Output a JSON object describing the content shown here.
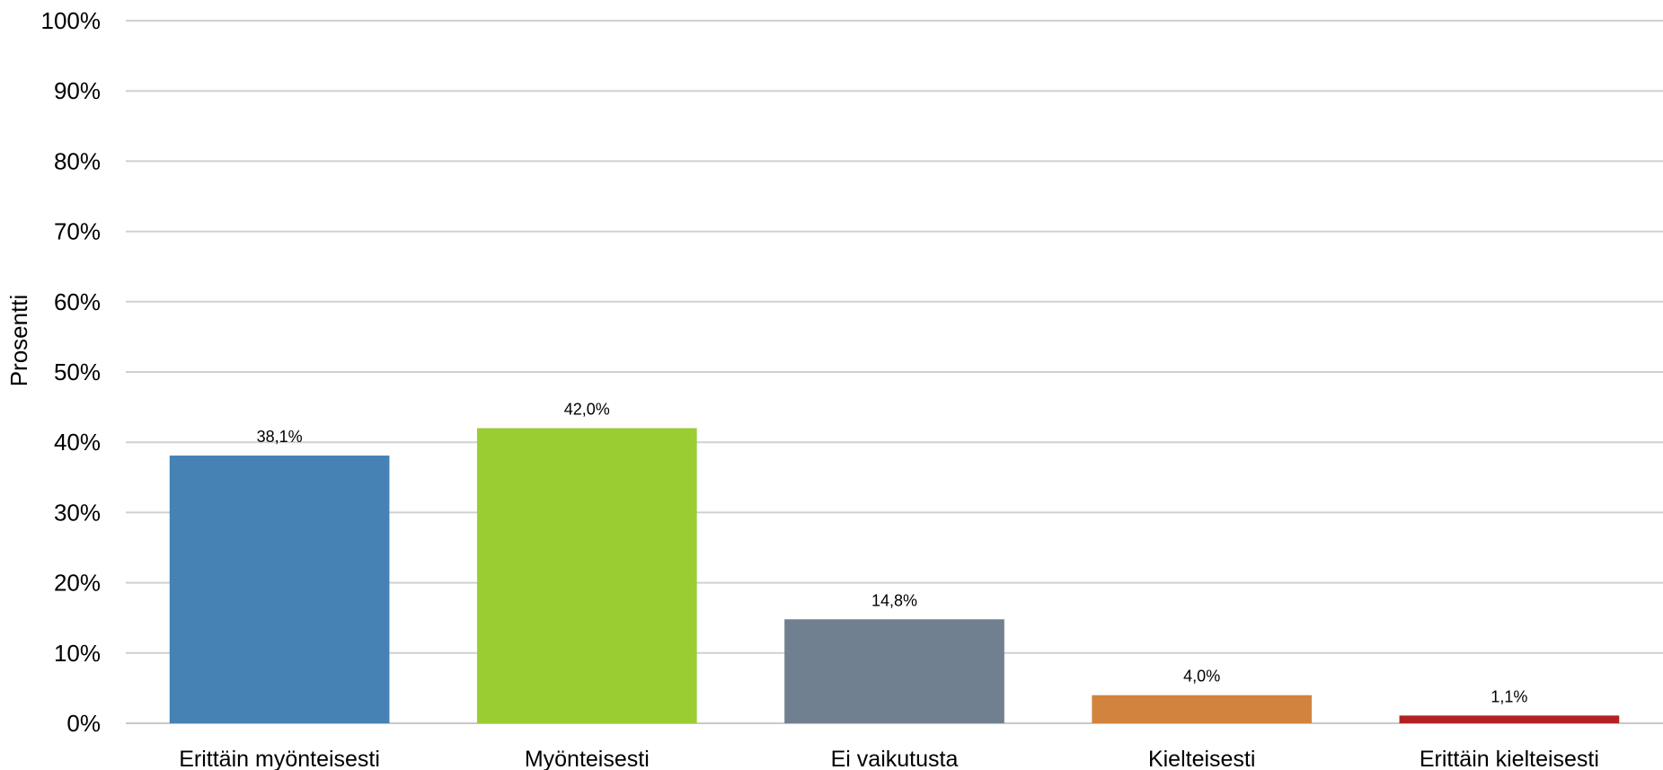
{
  "chart_data": {
    "type": "bar",
    "title": "",
    "xlabel": "",
    "ylabel": "Prosentti",
    "ylim": [
      0,
      100
    ],
    "yticks": [
      0,
      10,
      20,
      30,
      40,
      50,
      60,
      70,
      80,
      90,
      100
    ],
    "ytick_labels": [
      "0%",
      "10%",
      "20%",
      "30%",
      "40%",
      "50%",
      "60%",
      "70%",
      "80%",
      "90%",
      "100%"
    ],
    "grid": true,
    "legend": "none",
    "categories": [
      "Erittäin myönteisesti",
      "Myönteisesti",
      "Ei vaikutusta",
      "Kielteisesti",
      "Erittäin kielteisesti"
    ],
    "values": [
      38.1,
      42.0,
      14.8,
      4.0,
      1.1
    ],
    "data_labels": [
      "38,1%",
      "42,0%",
      "14,8%",
      "4,0%",
      "1,1%"
    ],
    "colors": [
      "#4682b4",
      "#9acd32",
      "#708090",
      "#d2843f",
      "#b22222"
    ]
  }
}
